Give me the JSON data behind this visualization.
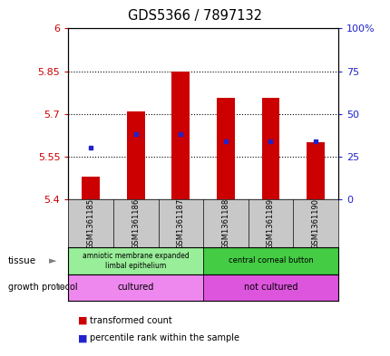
{
  "title": "GDS5366 / 7897132",
  "samples": [
    "GSM1361185",
    "GSM1361186",
    "GSM1361187",
    "GSM1361188",
    "GSM1361189",
    "GSM1361190"
  ],
  "transformed_counts": [
    5.48,
    5.71,
    5.85,
    5.755,
    5.755,
    5.6
  ],
  "percentile_ranks": [
    30,
    38,
    38,
    34,
    34,
    34
  ],
  "ymin": 5.4,
  "ymax": 6.0,
  "yticks": [
    5.4,
    5.55,
    5.7,
    5.85,
    6.0
  ],
  "ytick_labels": [
    "5.4",
    "5.55",
    "5.7",
    "5.85",
    "6"
  ],
  "right_yticks": [
    0,
    25,
    50,
    75,
    100
  ],
  "right_ytick_labels": [
    "0",
    "25",
    "50",
    "75",
    "100%"
  ],
  "bar_color": "#cc0000",
  "dot_color": "#2222cc",
  "bar_width": 0.4,
  "bg_color": "#ffffff",
  "left_tick_color": "#cc0000",
  "right_tick_color": "#2222cc",
  "sample_bg_color": "#c8c8c8",
  "tissue_color_left": "#99ee99",
  "tissue_color_right": "#44cc44",
  "protocol_color_left": "#ee88ee",
  "protocol_color_right": "#dd55dd",
  "tissue_label": "tissue",
  "protocol_label": "growth protocol",
  "tissue_text_left": "amniotic membrane expanded\nlimbal epithelium",
  "tissue_text_right": "central corneal button",
  "protocol_text_left": "cultured",
  "protocol_text_right": "not cultured",
  "legend_red_label": "transformed count",
  "legend_blue_label": "percentile rank within the sample"
}
